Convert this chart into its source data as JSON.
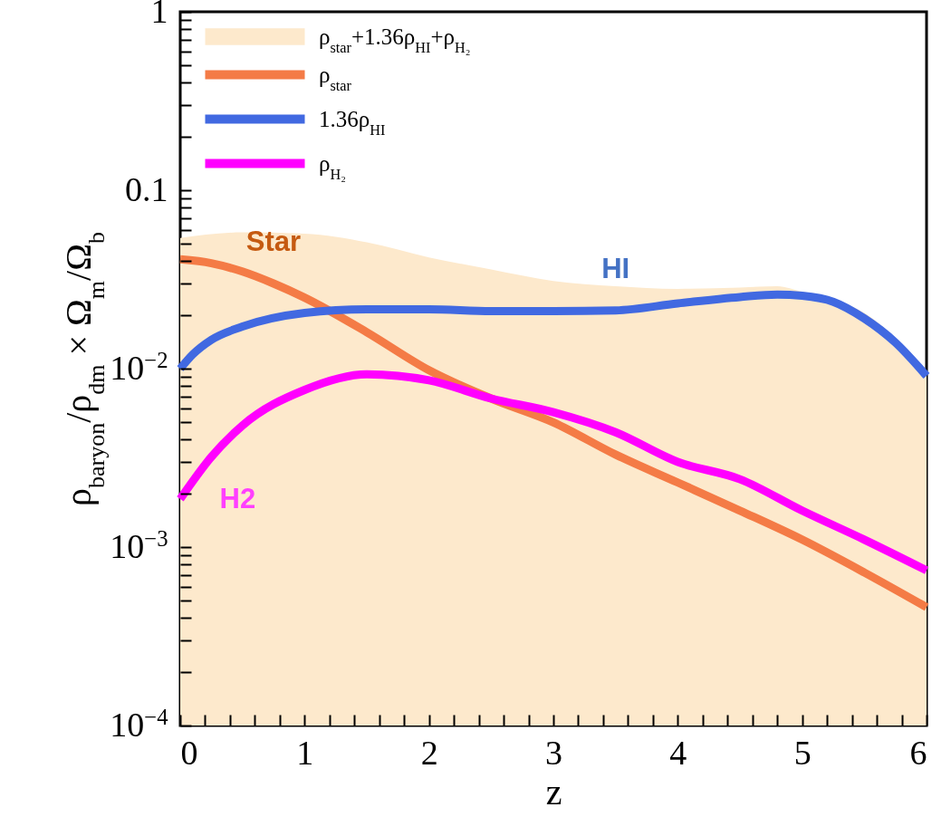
{
  "chart_data": {
    "type": "line",
    "xlabel": "z",
    "ylabel": "ρ$_{baryon}$/ρ$_{dm}$ × Ω$_{m}$/Ω$_{b}$",
    "log": true,
    "legend": "top left",
    "line_style": "solid",
    "xlim": [
      0,
      6
    ],
    "xticks": [
      0,
      {
        "value": 0.2,
        "label": null
      },
      {
        "value": 0.4,
        "label": null
      },
      {
        "value": 0.6,
        "label": null
      },
      {
        "value": 0.8,
        "label": null
      },
      1,
      {
        "value": 1.2,
        "label": null
      },
      {
        "value": 1.4,
        "label": null
      },
      {
        "value": 1.6,
        "label": null
      },
      {
        "value": 1.8,
        "label": null
      },
      2,
      {
        "value": 2.2,
        "label": null
      },
      {
        "value": 2.4,
        "label": null
      },
      {
        "value": 2.6,
        "label": null
      },
      {
        "value": 2.8,
        "label": null
      },
      3,
      {
        "value": 3.2,
        "label": null
      },
      {
        "value": 3.4,
        "label": null
      },
      {
        "value": 3.6,
        "label": null
      },
      {
        "value": 3.8,
        "label": null
      },
      4,
      {
        "value": 4.2,
        "label": null
      },
      {
        "value": 4.4,
        "label": null
      },
      {
        "value": 4.6,
        "label": null
      },
      {
        "value": 4.8,
        "label": null
      },
      5,
      {
        "value": 5.2,
        "label": null
      },
      {
        "value": 5.4,
        "label": null
      },
      {
        "value": 5.6,
        "label": null
      },
      {
        "value": 5.8,
        "label": null
      },
      6
    ],
    "ylim": [
      0.0001,
      1
    ],
    "yticks": [
      {
        "value": 0.0001,
        "label": "10$^{−4}$"
      },
      {
        "value": 0.0002,
        "label": null
      },
      {
        "value": 0.0003,
        "label": null
      },
      {
        "value": 0.0004,
        "label": null
      },
      {
        "value": 0.0005,
        "label": null
      },
      {
        "value": 0.0006,
        "label": null
      },
      {
        "value": 0.0007,
        "label": null
      },
      {
        "value": 0.0008,
        "label": null
      },
      {
        "value": 0.0009,
        "label": null
      },
      {
        "value": 0.001,
        "label": "10$^{−3}$"
      },
      {
        "value": 0.002,
        "label": null
      },
      {
        "value": 0.003,
        "label": null
      },
      {
        "value": 0.004,
        "label": null
      },
      {
        "value": 0.005,
        "label": null
      },
      {
        "value": 0.006,
        "label": null
      },
      {
        "value": 0.007,
        "label": null
      },
      {
        "value": 0.008,
        "label": null
      },
      {
        "value": 0.009,
        "label": null
      },
      {
        "value": 0.01,
        "label": "10$^{−2}$"
      },
      {
        "value": 0.02,
        "label": null
      },
      {
        "value": 0.03,
        "label": null
      },
      {
        "value": 0.04,
        "label": null
      },
      {
        "value": 0.05,
        "label": null
      },
      {
        "value": 0.06,
        "label": null
      },
      {
        "value": 0.07,
        "label": null
      },
      {
        "value": 0.08,
        "label": null
      },
      {
        "value": 0.09,
        "label": null
      },
      0.1,
      {
        "value": 0.2,
        "label": null
      },
      {
        "value": 0.3,
        "label": null
      },
      {
        "value": 0.4,
        "label": null
      },
      {
        "value": 0.5,
        "label": null
      },
      {
        "value": 0.6,
        "label": null
      },
      {
        "value": 0.7,
        "label": null
      },
      {
        "value": 0.8,
        "label": null
      },
      {
        "value": 0.9,
        "label": null
      },
      1
    ],
    "series": [
      {
        "type": "area",
        "name": "ρ$_{star}$+1.36ρ$_{HI}$+ρ$_{H₂}$",
        "color": "#fde9cc",
        "x": [
          0,
          0.5,
          1,
          1.5,
          2,
          2.5,
          3,
          3.5,
          4,
          4.5,
          4.8,
          5,
          5.25,
          5.5,
          5.75,
          6
        ],
        "values": [
          0.054,
          0.058,
          0.057,
          0.051,
          0.042,
          0.036,
          0.031,
          0.029,
          0.028,
          0.0285,
          0.029,
          0.027,
          0.0245,
          0.0205,
          0.0148,
          0.0094
        ]
      },
      {
        "name": "ρ$_{star}$",
        "color": "#f47b46",
        "x": [
          0,
          0.25,
          0.5,
          0.75,
          1,
          1.5,
          2,
          2.5,
          3,
          3.5,
          4,
          4.5,
          5,
          5.5,
          6
        ],
        "values": [
          0.041,
          0.039,
          0.035,
          0.03,
          0.025,
          0.016,
          0.0098,
          0.0068,
          0.005,
          0.0033,
          0.0023,
          0.0016,
          0.0011,
          0.00072,
          0.00046
        ]
      },
      {
        "name": "1.36ρ$_{HI}$",
        "color": "#4169e1",
        "x": [
          0,
          0.1,
          0.25,
          0.5,
          1,
          1.5,
          2,
          2.5,
          3,
          3.5,
          4,
          4.5,
          4.8,
          5,
          5.25,
          5.5,
          5.75,
          6
        ],
        "values": [
          0.01,
          0.012,
          0.0145,
          0.0172,
          0.0205,
          0.0215,
          0.0215,
          0.021,
          0.021,
          0.0212,
          0.0232,
          0.0252,
          0.026,
          0.0256,
          0.0237,
          0.0191,
          0.014,
          0.0091
        ]
      },
      {
        "name": "ρ$_{H₂}$",
        "color": "#ff00ff",
        "x": [
          0,
          0.25,
          0.5,
          1,
          1.5,
          2,
          2.5,
          3,
          3.5,
          4,
          4.5,
          5,
          5.5,
          6
        ],
        "values": [
          0.00186,
          0.0032,
          0.0048,
          0.0076,
          0.0093,
          0.0086,
          0.0068,
          0.0057,
          0.0044,
          0.003,
          0.0024,
          0.0016,
          0.0011,
          0.00074
        ]
      }
    ],
    "annotations": [
      {
        "text": "Star",
        "x": 0.75,
        "y": 0.03
      },
      {
        "text": "HI",
        "x": 3.5,
        "y": 0.0212
      },
      {
        "text": "H2",
        "x": 0.25,
        "y": 0.0032
      }
    ]
  }
}
